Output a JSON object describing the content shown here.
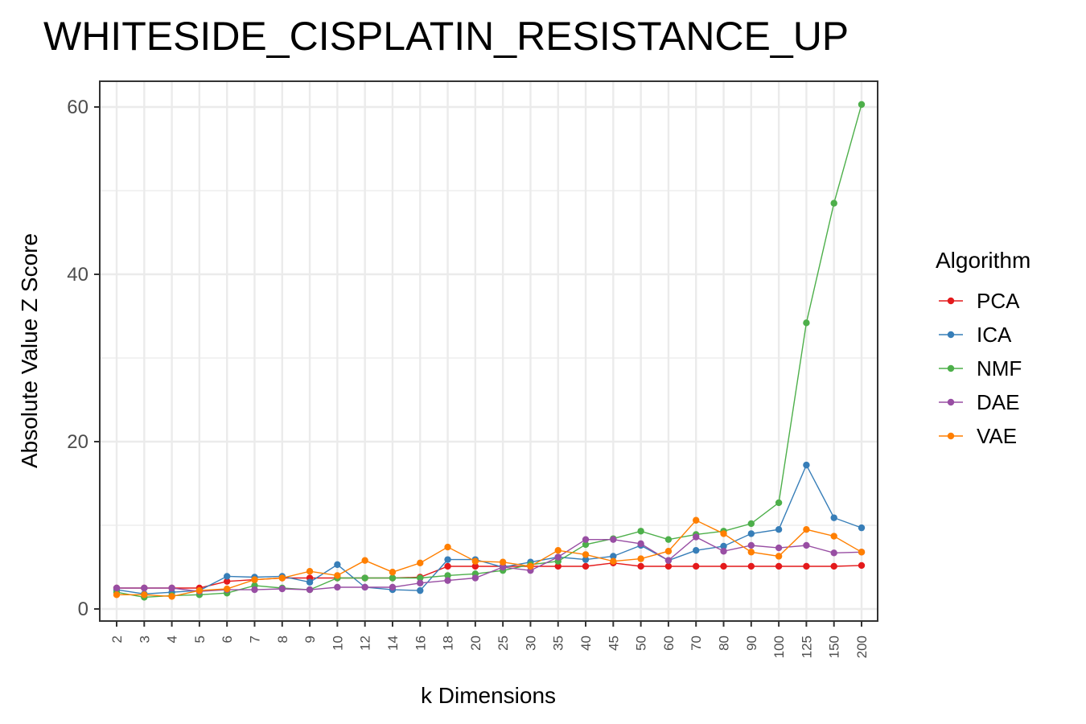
{
  "chart_data": {
    "type": "line",
    "title": "WHITESIDE_CISPLATIN_RESISTANCE_UP",
    "xlabel": "k Dimensions",
    "ylabel": "Absolute Value Z Score",
    "categories": [
      "2",
      "3",
      "4",
      "5",
      "6",
      "7",
      "8",
      "9",
      "10",
      "12",
      "14",
      "16",
      "18",
      "20",
      "25",
      "30",
      "35",
      "40",
      "45",
      "50",
      "60",
      "70",
      "80",
      "90",
      "100",
      "125",
      "150",
      "200"
    ],
    "yticks": [
      0,
      20,
      40,
      60
    ],
    "ylim": [
      -1.5,
      63.2
    ],
    "grid": true,
    "legend": {
      "title": "Algorithm",
      "position": "right"
    },
    "series": [
      {
        "name": "PCA",
        "color": "#E41A1C",
        "values": [
          2.5,
          2.5,
          2.5,
          2.5,
          3.3,
          3.5,
          3.7,
          3.7,
          3.7,
          3.7,
          3.7,
          3.8,
          5.1,
          5.1,
          5.1,
          5.1,
          5.1,
          5.1,
          5.5,
          5.1,
          5.1,
          5.1,
          5.1,
          5.1,
          5.1,
          5.1,
          5.1,
          5.2
        ]
      },
      {
        "name": "ICA",
        "color": "#377EB8",
        "values": [
          2.3,
          1.8,
          2.0,
          2.2,
          3.9,
          3.8,
          3.9,
          3.2,
          5.3,
          2.6,
          2.3,
          2.2,
          5.9,
          5.9,
          5.0,
          5.6,
          6.2,
          5.9,
          6.3,
          7.6,
          5.8,
          7.0,
          7.5,
          9.0,
          9.5,
          17.2,
          10.9,
          9.7
        ]
      },
      {
        "name": "NMF",
        "color": "#4DAF4A",
        "values": [
          2.0,
          1.4,
          1.6,
          1.7,
          1.9,
          2.8,
          2.5,
          2.3,
          3.7,
          3.7,
          3.7,
          3.7,
          4.0,
          4.2,
          4.6,
          5.3,
          5.7,
          7.7,
          8.4,
          9.3,
          8.3,
          8.9,
          9.3,
          10.2,
          12.7,
          34.2,
          48.5,
          60.3
        ]
      },
      {
        "name": "DAE",
        "color": "#984EA3",
        "values": [
          2.5,
          2.5,
          2.5,
          2.1,
          2.3,
          2.3,
          2.4,
          2.3,
          2.6,
          2.6,
          2.6,
          3.1,
          3.4,
          3.7,
          5.0,
          4.6,
          6.2,
          8.3,
          8.3,
          7.8,
          5.8,
          8.6,
          6.9,
          7.6,
          7.3,
          7.6,
          6.7,
          6.8
        ]
      },
      {
        "name": "VAE",
        "color": "#FF7F00",
        "values": [
          1.7,
          1.7,
          1.5,
          2.2,
          2.4,
          3.5,
          3.7,
          4.5,
          4.0,
          5.8,
          4.4,
          5.5,
          7.4,
          5.7,
          5.6,
          5.1,
          7.0,
          6.5,
          5.7,
          6.0,
          6.9,
          10.6,
          9.0,
          6.8,
          6.3,
          9.5,
          8.7,
          6.8
        ]
      }
    ]
  }
}
